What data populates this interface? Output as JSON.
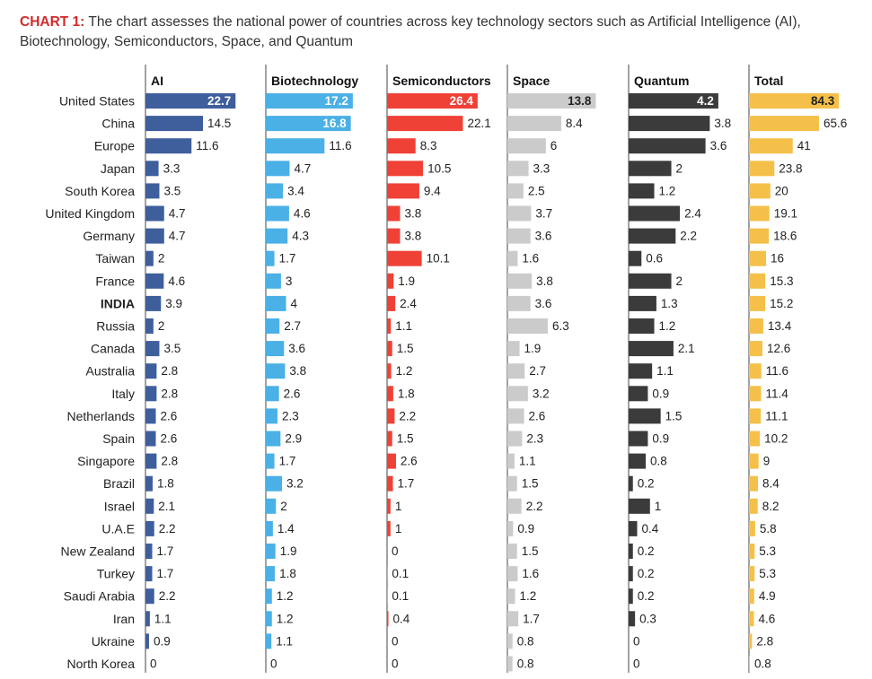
{
  "caption": {
    "lead": "CHART 1:",
    "text": " The chart assesses the national power of countries across key technology sectors such as Artificial Intelligence (AI), Biotechnology, Semiconductors, Space, and Quantum"
  },
  "chart_data": {
    "type": "bar",
    "title": "CHART 1: The chart assesses the national power of countries across key technology sectors such as Artificial Intelligence (AI), Biotechnology, Semiconductors, Space, and Quantum",
    "orientation": "horizontal",
    "highlight_category": "INDIA",
    "categories": [
      "United States",
      "China",
      "Europe",
      "Japan",
      "South Korea",
      "United Kingdom",
      "Germany",
      "Taiwan",
      "France",
      "INDIA",
      "Russia",
      "Canada",
      "Australia",
      "Italy",
      "Netherlands",
      "Spain",
      "Singapore",
      "Brazil",
      "Israel",
      "U.A.E",
      "New Zealand",
      "Turkey",
      "Saudi Arabia",
      "Iran",
      "Ukraine",
      "North Korea"
    ],
    "series": [
      {
        "name": "AI",
        "color": "#3f5e9c",
        "scale_max": 24,
        "values": [
          22.7,
          14.5,
          11.6,
          3.3,
          3.5,
          4.7,
          4.7,
          2,
          4.6,
          3.9,
          2,
          3.5,
          2.8,
          2.8,
          2.6,
          2.6,
          2.8,
          1.8,
          2.1,
          2.2,
          1.7,
          1.7,
          2.2,
          1.1,
          0.9,
          0
        ]
      },
      {
        "name": "Biotechnology",
        "color": "#4bb0e6",
        "scale_max": 19,
        "values": [
          17.2,
          16.8,
          11.6,
          4.7,
          3.4,
          4.6,
          4.3,
          1.7,
          3,
          4,
          2.7,
          3.6,
          3.8,
          2.6,
          2.3,
          2.9,
          1.7,
          3.2,
          2,
          1.4,
          1.9,
          1.8,
          1.2,
          1.2,
          1.1,
          0
        ]
      },
      {
        "name": "Semiconductors",
        "color": "#ef4136",
        "scale_max": 28,
        "values": [
          26.4,
          22.1,
          8.3,
          10.5,
          9.4,
          3.8,
          3.8,
          10.1,
          1.9,
          2.4,
          1.1,
          1.5,
          1.2,
          1.8,
          2.2,
          1.5,
          2.6,
          1.7,
          1,
          1,
          0,
          0.1,
          0.1,
          0.4,
          0,
          0
        ]
      },
      {
        "name": "Space",
        "color": "#cbcbcb",
        "scale_max": 15,
        "values": [
          13.8,
          8.4,
          6,
          3.3,
          2.5,
          3.7,
          3.6,
          1.6,
          3.8,
          3.6,
          6.3,
          1.9,
          2.7,
          3.2,
          2.6,
          2.3,
          1.1,
          1.5,
          2.2,
          0.9,
          1.5,
          1.6,
          1.2,
          1.7,
          0.8,
          0.8
        ]
      },
      {
        "name": "Quantum",
        "color": "#3b3b3b",
        "scale_max": 4.5,
        "values": [
          4.2,
          3.8,
          3.6,
          2,
          1.2,
          2.4,
          2.2,
          0.6,
          2,
          1.3,
          1.2,
          2.1,
          1.1,
          0.9,
          1.5,
          0.9,
          0.8,
          0.2,
          1,
          0.4,
          0.2,
          0.2,
          0.2,
          0.3,
          0,
          0
        ]
      },
      {
        "name": "Total",
        "color": "#f5c04a",
        "scale_max": 90,
        "values": [
          84.3,
          65.6,
          41,
          23.8,
          20,
          19.1,
          18.6,
          16,
          15.3,
          15.2,
          13.4,
          12.6,
          11.6,
          11.4,
          11.1,
          10.2,
          9,
          8.4,
          8.2,
          5.8,
          5.3,
          5.3,
          4.9,
          4.6,
          2.8,
          0.8
        ]
      }
    ],
    "xlabel": "",
    "ylabel": "",
    "grid": false,
    "legend": "none"
  }
}
